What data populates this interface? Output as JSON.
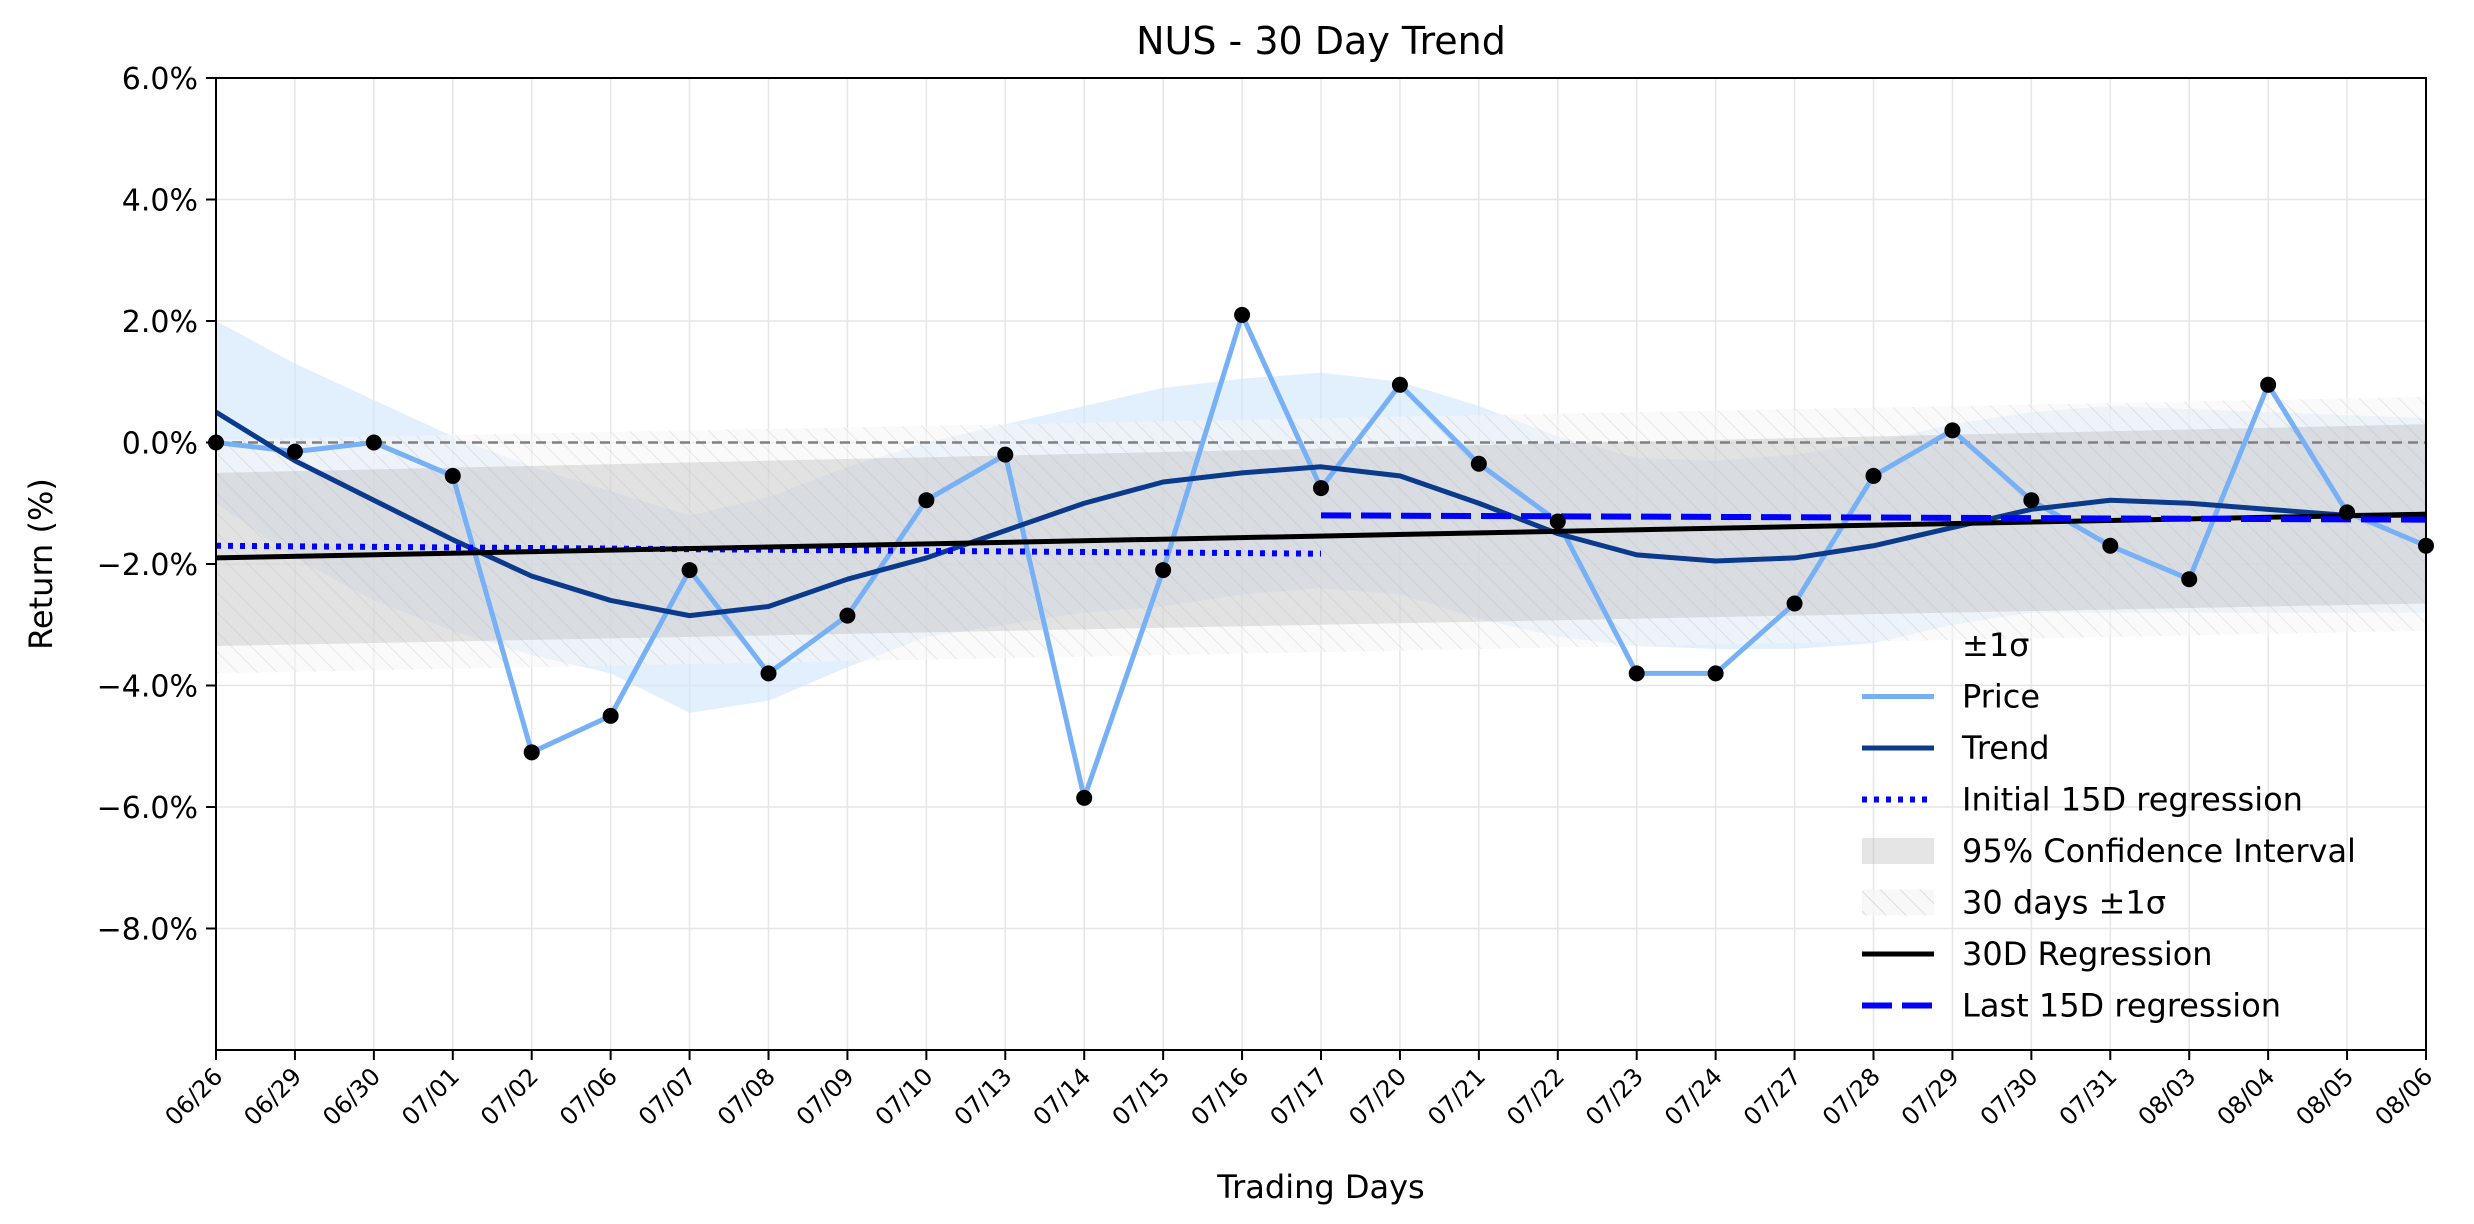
{
  "chart_data": {
    "type": "line",
    "title": "NUS - 30 Day Trend",
    "xlabel": "Trading Days",
    "ylabel": "Return (%)",
    "ylim": [
      -10,
      6
    ],
    "yticks": [
      -8,
      -6,
      -4,
      -2,
      0,
      2,
      4,
      6
    ],
    "ytick_labels": [
      "−8.0%",
      "−6.0%",
      "−4.0%",
      "−2.0%",
      "0.0%",
      "2.0%",
      "4.0%",
      "6.0%"
    ],
    "grid": true,
    "legend_position": "lower-right",
    "categories": [
      "06/26",
      "06/29",
      "06/30",
      "07/01",
      "07/02",
      "07/06",
      "07/07",
      "07/08",
      "07/09",
      "07/10",
      "07/13",
      "07/14",
      "07/15",
      "07/16",
      "07/17",
      "07/20",
      "07/21",
      "07/22",
      "07/23",
      "07/24",
      "07/27",
      "07/28",
      "07/29",
      "07/30",
      "07/31",
      "08/03",
      "08/04",
      "08/05",
      "08/06"
    ],
    "series": [
      {
        "name": "Price",
        "color": "#78b0f5",
        "values": [
          0.0,
          -0.15,
          0.0,
          -0.55,
          -5.1,
          -4.5,
          -2.1,
          -3.8,
          -2.85,
          -0.95,
          -0.2,
          -5.85,
          -2.1,
          2.1,
          -0.75,
          0.95,
          -0.35,
          -1.3,
          -3.8,
          -3.8,
          -2.65,
          -0.55,
          0.2,
          -0.95,
          -1.7,
          -2.25,
          0.95,
          -1.15,
          -1.7
        ]
      },
      {
        "name": "Trend",
        "color": "#0b3a8c",
        "values": [
          0.5,
          -0.3,
          -0.95,
          -1.6,
          -2.2,
          -2.6,
          -2.85,
          -2.7,
          -2.25,
          -1.9,
          -1.45,
          -1.0,
          -0.65,
          -0.5,
          -0.4,
          -0.55,
          -1.0,
          -1.5,
          -1.85,
          -1.95,
          -1.9,
          -1.7,
          -1.4,
          -1.1,
          -0.95,
          -1.0,
          -1.1,
          -1.2,
          -1.2
        ]
      },
      {
        "name": "Initial 15D regression",
        "color": "#0000ff",
        "x_range": [
          0,
          14
        ],
        "y_range": [
          -1.7,
          -1.83
        ]
      },
      {
        "name": "30D Regression",
        "color": "#000000",
        "x_range": [
          0,
          28
        ],
        "y_range": [
          -1.9,
          -1.18
        ]
      },
      {
        "name": "Last 15D regression",
        "color": "#0000ff",
        "x_range": [
          14,
          28
        ],
        "y_range": [
          -1.2,
          -1.27
        ]
      }
    ],
    "bands": {
      "sigma_upper": [
        2.0,
        1.3,
        0.7,
        0.1,
        -0.4,
        -0.8,
        -1.2,
        -0.9,
        -0.4,
        0.0,
        0.3,
        0.6,
        0.9,
        1.05,
        1.15,
        1.0,
        0.6,
        0.1,
        -0.25,
        -0.3,
        -0.2,
        0.0,
        0.3,
        0.5,
        0.6,
        0.55,
        0.5,
        0.45,
        0.4
      ],
      "sigma_lower": [
        -1.0,
        -1.9,
        -2.6,
        -3.1,
        -3.5,
        -3.8,
        -4.45,
        -4.25,
        -3.7,
        -3.2,
        -3.0,
        -2.8,
        -2.7,
        -2.5,
        -2.4,
        -2.5,
        -2.9,
        -3.2,
        -3.35,
        -3.4,
        -3.4,
        -3.3,
        -3.0,
        -2.8,
        -2.8,
        -2.8,
        -2.8,
        -2.8,
        -2.8
      ],
      "ci_upper_start": -0.5,
      "ci_upper_end": 0.3,
      "ci_lower_start": -3.35,
      "ci_lower_end": -2.65,
      "sigma30_upper_start": 0.05,
      "sigma30_upper_end": 0.75,
      "sigma30_lower_start": -3.8,
      "sigma30_lower_end": -3.1,
      "zero_line": 0
    },
    "legend": [
      "±1σ",
      "Price",
      "Trend",
      "Initial 15D regression",
      "95% Confidence Interval",
      "30 days ±1σ",
      "30D Regression",
      "Last 15D regression"
    ]
  }
}
